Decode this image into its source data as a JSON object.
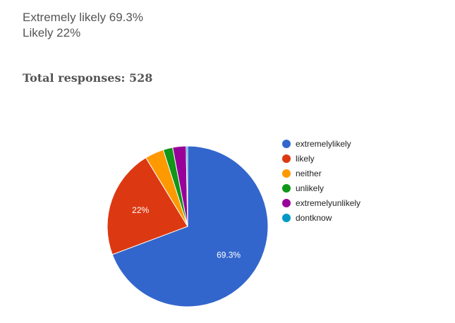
{
  "summary": {
    "line1": "Extremely likely 69.3%",
    "line2": "Likely 22%"
  },
  "total": {
    "label": "Total responses:",
    "value": "528"
  },
  "chart_data": {
    "type": "pie",
    "categories": [
      "extremelylikely",
      "likely",
      "neither",
      "unlikely",
      "extremelyunlikely",
      "dontknow"
    ],
    "values": [
      69.3,
      22,
      3.8,
      1.9,
      2.7,
      0.3
    ],
    "colors": [
      "#3366cc",
      "#dc3912",
      "#ff9900",
      "#109618",
      "#990099",
      "#0099c6"
    ],
    "slice_labels": [
      "69.3%",
      "22%",
      "",
      "",
      "",
      ""
    ],
    "legend_position": "right",
    "start_angle_deg": 0,
    "direction": "clockwise"
  }
}
